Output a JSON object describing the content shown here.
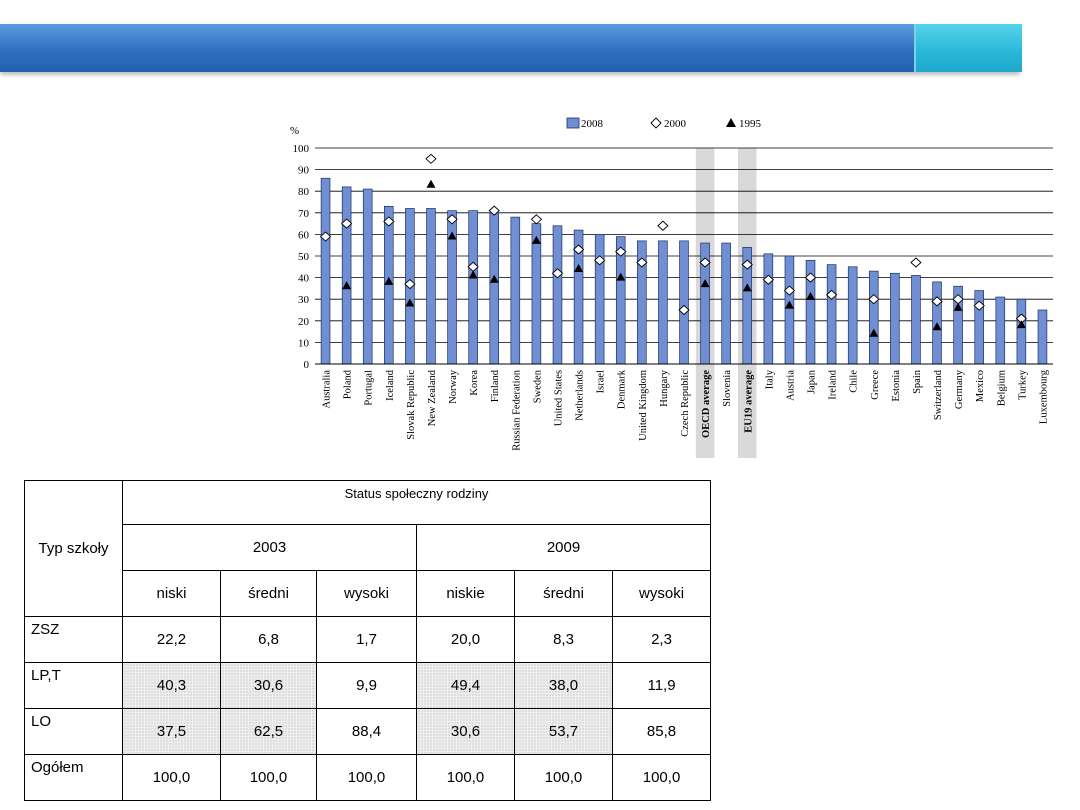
{
  "chart_data": {
    "type": "bar",
    "ylabel": "%",
    "ylim": [
      0,
      100
    ],
    "yticks": [
      0,
      10,
      20,
      30,
      40,
      50,
      60,
      70,
      80,
      90,
      100
    ],
    "grid": true,
    "legend_placement": "top",
    "categories": [
      "Australia",
      "Poland",
      "Portugal",
      "Iceland",
      "Slovak Republic",
      "New Zealand",
      "Norway",
      "Korea",
      "Finland",
      "Russian Federation",
      "Sweden",
      "United States",
      "Netherlands",
      "Israel",
      "Denmark",
      "United Kingdom",
      "Hungary",
      "Czech Republic",
      "OECD average",
      "Slovenia",
      "EU19 average",
      "Italy",
      "Austria",
      "Japan",
      "Ireland",
      "Chile",
      "Greece",
      "Estonia",
      "Spain",
      "Switzerland",
      "Germany",
      "Mexico",
      "Belgium",
      "Turkey",
      "Luxembourg"
    ],
    "highlighted": [
      "OECD average",
      "EU19 average"
    ],
    "series": [
      {
        "name": "2008",
        "kind": "bar",
        "color": "#6f8fd2",
        "values": [
          86,
          82,
          81,
          73,
          72,
          72,
          71,
          71,
          70,
          68,
          65,
          64,
          62,
          60,
          59,
          57,
          57,
          57,
          56,
          56,
          54,
          51,
          50,
          48,
          46,
          45,
          43,
          42,
          41,
          38,
          36,
          34,
          31,
          30,
          25
        ]
      },
      {
        "name": "2000",
        "kind": "marker",
        "marker": "diamond",
        "values": [
          59,
          65,
          null,
          66,
          37,
          95,
          67,
          45,
          71,
          null,
          67,
          42,
          53,
          48,
          52,
          47,
          64,
          25,
          47,
          null,
          46,
          39,
          34,
          40,
          32,
          null,
          30,
          null,
          47,
          29,
          30,
          27,
          null,
          21,
          null
        ]
      },
      {
        "name": "1995",
        "kind": "marker",
        "marker": "triangle",
        "values": [
          null,
          36,
          null,
          38,
          28,
          83,
          59,
          41,
          39,
          null,
          57,
          null,
          44,
          null,
          40,
          null,
          null,
          null,
          37,
          null,
          35,
          null,
          27,
          31,
          null,
          null,
          14,
          null,
          null,
          17,
          26,
          null,
          null,
          18,
          null
        ]
      }
    ]
  },
  "table": {
    "corner": "Typ szkoły",
    "group_header": "Status społeczny rodziny",
    "years": [
      "2003",
      "2009"
    ],
    "subheaders": [
      "niski",
      "średni",
      "wysoki",
      "niskie",
      "średni",
      "wysoki"
    ],
    "rows": [
      {
        "label": "ZSZ",
        "values": [
          "22,2",
          "6,8",
          "1,7",
          "20,0",
          "8,3",
          "2,3"
        ]
      },
      {
        "label": "LP,T",
        "values": [
          "40,3",
          "30,6",
          "9,9",
          "49,4",
          "38,0",
          "11,9"
        ]
      },
      {
        "label": "LO",
        "values": [
          "37,5",
          "62,5",
          "88,4",
          "30,6",
          "53,7",
          "85,8"
        ]
      },
      {
        "label": "Ogółem",
        "values": [
          "100,0",
          "100,0",
          "100,0",
          "100,0",
          "100,0",
          "100,0"
        ]
      }
    ]
  }
}
